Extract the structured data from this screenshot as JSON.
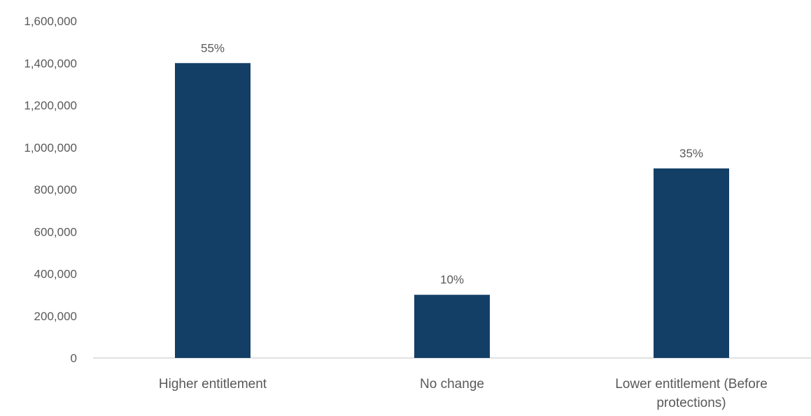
{
  "chart_data": {
    "type": "bar",
    "categories": [
      "Higher entitlement",
      "No change",
      "Lower entitlement (Before protections)"
    ],
    "category_label_lines": [
      [
        "Higher entitlement"
      ],
      [
        "No change"
      ],
      [
        "Lower entitlement (Before",
        "protections)"
      ]
    ],
    "values": [
      1400000,
      300000,
      900000
    ],
    "data_labels": [
      "55%",
      "10%",
      "35%"
    ],
    "y_ticks": [
      0,
      200000,
      400000,
      600000,
      800000,
      1000000,
      1200000,
      1400000,
      1600000
    ],
    "y_tick_labels": [
      "0",
      "200,000",
      "400,000",
      "600,000",
      "800,000",
      "1,000,000",
      "1,200,000",
      "1,400,000",
      "1,600,000"
    ],
    "ylim": [
      0,
      1600000
    ],
    "grid": false,
    "legend": "none",
    "colors": {
      "bar": "#133f66",
      "text": "#595959",
      "axis": "#d9d9d9"
    }
  }
}
